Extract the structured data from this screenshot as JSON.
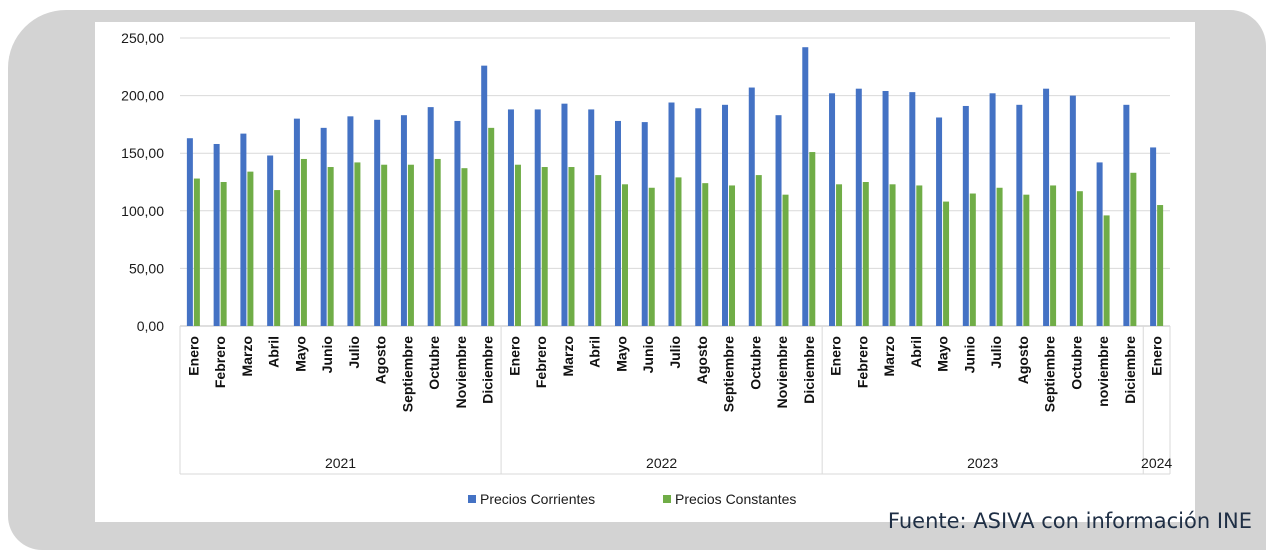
{
  "source_note": "Fuente: ASIVA con información INE",
  "colors": {
    "series_1": "#4472c4",
    "series_2": "#70ad47",
    "panel": "#d3d3d3"
  },
  "chart_data": {
    "type": "bar",
    "grouped_x": true,
    "groups": [
      {
        "label": "2021",
        "months": [
          "Enero",
          "Febrero",
          "Marzo",
          "Abril",
          "Mayo",
          "Junio",
          "Julio",
          "Agosto",
          "Septiembre",
          "Octubre",
          "Noviembre",
          "Diciembre"
        ]
      },
      {
        "label": "2022",
        "months": [
          "Enero",
          "Febrero",
          "Marzo",
          "Abril",
          "Mayo",
          "Junio",
          "Julio",
          "Agosto",
          "Septiembre",
          "Octubre",
          "Noviembre",
          "Diciembre"
        ]
      },
      {
        "label": "2023",
        "months": [
          "Enero",
          "Febrero",
          "Marzo",
          "Abril",
          "Mayo",
          "Junio",
          "Julio",
          "Agosto",
          "Septiembre",
          "Octubre",
          "noviembre",
          "Diciembre"
        ]
      },
      {
        "label": "2024",
        "months": [
          "Enero"
        ]
      }
    ],
    "series": [
      {
        "name": "Precios Corrientes",
        "color": "#4472c4",
        "values": [
          163,
          158,
          167,
          148,
          180,
          172,
          182,
          179,
          183,
          190,
          178,
          226,
          188,
          188,
          193,
          188,
          178,
          177,
          194,
          189,
          192,
          207,
          183,
          242,
          202,
          206,
          204,
          203,
          181,
          191,
          202,
          192,
          206,
          200,
          142,
          192,
          155
        ]
      },
      {
        "name": "Precios Constantes",
        "color": "#70ad47",
        "values": [
          128,
          125,
          134,
          118,
          145,
          138,
          142,
          140,
          140,
          145,
          137,
          172,
          140,
          138,
          138,
          131,
          123,
          120,
          129,
          124,
          122,
          131,
          114,
          151,
          123,
          125,
          123,
          122,
          108,
          115,
          120,
          114,
          122,
          117,
          96,
          133,
          105
        ]
      }
    ],
    "yticks": [
      "0,00",
      "50,00",
      "100,00",
      "150,00",
      "200,00",
      "250,00"
    ],
    "ylim": [
      0,
      250
    ],
    "grid": "horizontal",
    "legend_position": "bottom"
  }
}
